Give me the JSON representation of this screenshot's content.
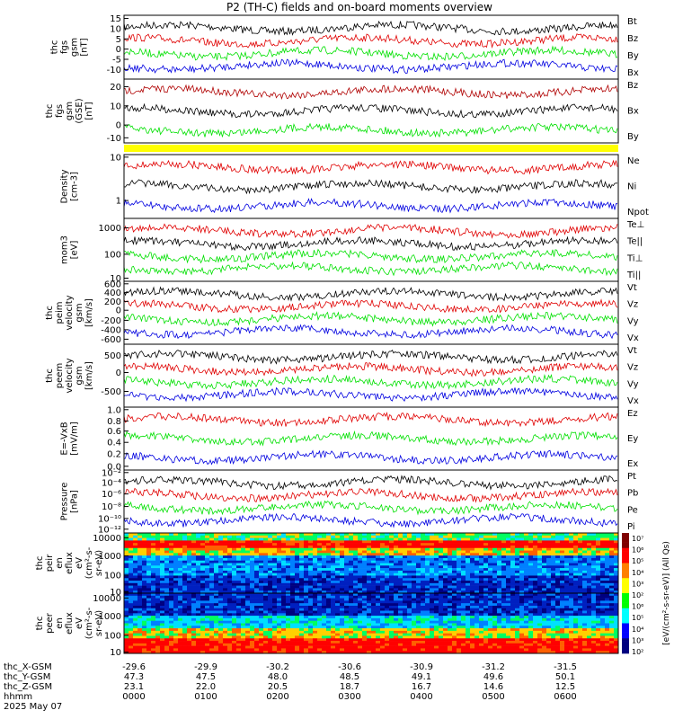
{
  "title": "P2 (TH-C) fields and on-board moments overview",
  "colors": {
    "black": "#000000",
    "red": "#e00000",
    "green": "#00e000",
    "blue": "#0000e0",
    "darkred": "#b00000",
    "yellow": "#ffff00"
  },
  "chart_data": [
    {
      "id": "p1",
      "type": "line",
      "ylabel": [
        "thc",
        "fgs",
        "gsm",
        "[nT]"
      ],
      "yticks": [
        "15",
        "10",
        "5",
        "0",
        "-5",
        "-10"
      ],
      "legend": [
        {
          "name": "Bt",
          "color": "#000000"
        },
        {
          "name": "Bz",
          "color": "#e00000"
        },
        {
          "name": "By",
          "color": "#00e000"
        },
        {
          "name": "Bx",
          "color": "#0000e0"
        }
      ]
    },
    {
      "id": "p2",
      "type": "line",
      "ylabel": [
        "thc",
        "fgs",
        "gsm",
        "(GSE)",
        "[nT]"
      ],
      "yticks": [
        "20",
        "10",
        "0",
        "-10"
      ],
      "legend": [
        {
          "name": "Bz",
          "color": "#b00000"
        },
        {
          "name": "Bx",
          "color": "#000000"
        },
        {
          "name": "By",
          "color": "#00e000"
        }
      ]
    },
    {
      "id": "p3",
      "type": "line",
      "ylabel": [
        "Density",
        "[cm-3]"
      ],
      "yticks": [
        "10",
        "1"
      ],
      "legend": [
        {
          "name": "Ne",
          "color": "#e00000"
        },
        {
          "name": "Ni",
          "color": "#000000"
        },
        {
          "name": "Npot",
          "color": "#0000e0"
        }
      ]
    },
    {
      "id": "p4",
      "type": "line",
      "ylabel": [
        "mom3",
        "[eV]"
      ],
      "yticks": [
        "1000",
        "100",
        "10"
      ],
      "legend": [
        {
          "name": "Te⊥",
          "color": "#e00000"
        },
        {
          "name": "Te||",
          "color": "#000000"
        },
        {
          "name": "Ti⊥",
          "color": "#00e000"
        },
        {
          "name": "Ti||",
          "color": "#00e000"
        }
      ]
    },
    {
      "id": "p5",
      "type": "line",
      "ylabel": [
        "thc",
        "peim",
        "velocity",
        "gsm",
        "[km/s]"
      ],
      "yticks": [
        "600",
        "400",
        "200",
        "0",
        "-200",
        "-400",
        "-600"
      ],
      "legend": [
        {
          "name": "Vt",
          "color": "#000000"
        },
        {
          "name": "Vz",
          "color": "#e00000"
        },
        {
          "name": "Vy",
          "color": "#00e000"
        },
        {
          "name": "Vx",
          "color": "#0000e0"
        }
      ]
    },
    {
      "id": "p6",
      "type": "line",
      "ylabel": [
        "thc",
        "peem",
        "velocity",
        "gsm",
        "[km/s]"
      ],
      "yticks": [
        "500",
        "0",
        "-500"
      ],
      "legend": [
        {
          "name": "Vt",
          "color": "#000000"
        },
        {
          "name": "Vz",
          "color": "#e00000"
        },
        {
          "name": "Vy",
          "color": "#00e000"
        },
        {
          "name": "Vx",
          "color": "#0000e0"
        }
      ]
    },
    {
      "id": "p7",
      "type": "line",
      "ylabel": [
        "E=-VxB",
        "[mV/m]"
      ],
      "yticks": [
        "1.0",
        "0.8",
        "0.6",
        "0.4",
        "0.2",
        "0.0"
      ],
      "legend": [
        {
          "name": "Ez",
          "color": "#e00000"
        },
        {
          "name": "Ey",
          "color": "#00e000"
        },
        {
          "name": "Ex",
          "color": "#0000e0"
        }
      ]
    },
    {
      "id": "p8",
      "type": "line",
      "ylabel": [
        "Pressure",
        "[nPa]"
      ],
      "yticks": [
        "10⁻²",
        "10⁻⁴",
        "10⁻⁶",
        "10⁻⁸",
        "10⁻¹⁰",
        "10⁻¹²"
      ],
      "legend": [
        {
          "name": "Pt",
          "color": "#000000"
        },
        {
          "name": "Pb",
          "color": "#e00000"
        },
        {
          "name": "Pe",
          "color": "#00e000"
        },
        {
          "name": "Pi",
          "color": "#0000e0"
        }
      ]
    },
    {
      "id": "p9",
      "type": "heatmap",
      "ylabel": [
        "thc",
        "peir",
        "en",
        "eflux",
        "eV",
        "(cm²-s-",
        "sr-eV)"
      ],
      "yticks": [
        "10000",
        "1000",
        "100",
        "10"
      ]
    },
    {
      "id": "p10",
      "type": "heatmap",
      "ylabel": [
        "thc",
        "peer",
        "en",
        "eflux",
        "eV",
        "(cm²-s-",
        "sr-eV)"
      ],
      "yticks": [
        "10000",
        "1000",
        "100",
        "10"
      ]
    }
  ],
  "colorbar": {
    "label": "[eV/(cm²-s-sr-eV)] (All Qs)",
    "ticks": [
      "10⁷",
      "10⁶",
      "10⁵",
      "10⁴",
      "10³",
      "10²",
      "10⁶",
      "10⁵",
      "10⁴",
      "10³",
      "10²"
    ]
  },
  "xaxis": {
    "rows": [
      {
        "label": "thc_X-GSM",
        "values": [
          "-29.6",
          "-29.9",
          "-30.2",
          "-30.6",
          "-30.9",
          "-31.2",
          "-31.5"
        ]
      },
      {
        "label": "thc_Y-GSM",
        "values": [
          "47.3",
          "47.5",
          "48.0",
          "48.5",
          "49.1",
          "49.6",
          "50.1"
        ]
      },
      {
        "label": "thc_Z-GSM",
        "values": [
          "23.1",
          "22.0",
          "20.5",
          "18.7",
          "16.7",
          "14.6",
          "12.5"
        ]
      },
      {
        "label": "hhmm",
        "values": [
          "0000",
          "0100",
          "0200",
          "0300",
          "0400",
          "0500",
          "0600"
        ]
      }
    ],
    "date": "2025 May 07"
  }
}
